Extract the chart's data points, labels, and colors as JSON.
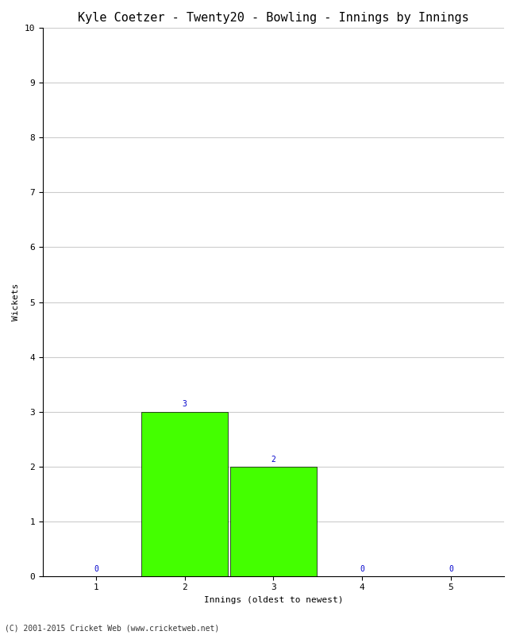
{
  "title": "Kyle Coetzer - Twenty20 - Bowling - Innings by Innings",
  "xlabel": "Innings (oldest to newest)",
  "ylabel": "Wickets",
  "categories": [
    1,
    2,
    3,
    4,
    5
  ],
  "values": [
    0,
    3,
    2,
    0,
    0
  ],
  "bar_color": "#44ff00",
  "bar_edge_color": "#000000",
  "ylim": [
    0,
    10
  ],
  "yticks": [
    0,
    1,
    2,
    3,
    4,
    5,
    6,
    7,
    8,
    9,
    10
  ],
  "xticks": [
    1,
    2,
    3,
    4,
    5
  ],
  "annotation_color": "#0000cc",
  "annotation_fontsize": 7,
  "title_fontsize": 11,
  "axis_label_fontsize": 8,
  "tick_fontsize": 8,
  "footer": "(C) 2001-2015 Cricket Web (www.cricketweb.net)",
  "footer_fontsize": 7,
  "background_color": "#ffffff",
  "grid_color": "#cccccc",
  "bar_width": 0.97
}
